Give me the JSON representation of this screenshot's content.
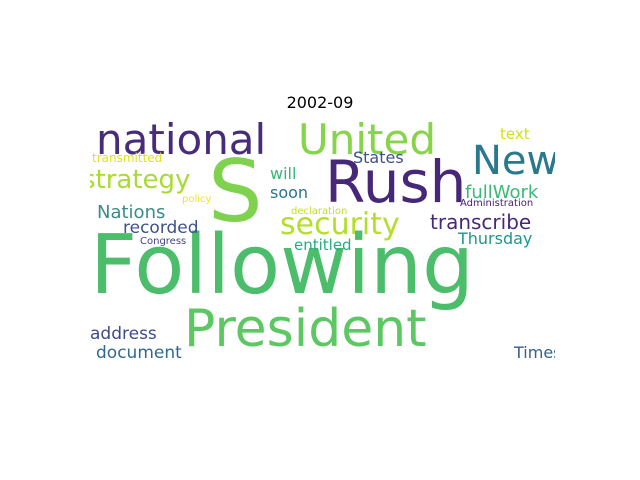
{
  "title": "2002-09",
  "words": [
    {
      "id": "following",
      "text": "Following",
      "color": "#4cbd6a"
    },
    {
      "id": "s",
      "text": "S",
      "color": "#7ed24e"
    },
    {
      "id": "rush",
      "text": "Rush",
      "color": "#472777"
    },
    {
      "id": "president",
      "text": "President",
      "color": "#5dc863"
    },
    {
      "id": "national",
      "text": "national",
      "color": "#472c7a"
    },
    {
      "id": "united",
      "text": "United",
      "color": "#86d549"
    },
    {
      "id": "new",
      "text": "New",
      "color": "#2a788e"
    },
    {
      "id": "security",
      "text": "security",
      "color": "#b5de2b"
    },
    {
      "id": "strategy",
      "text": "strategy",
      "color": "#a8db34"
    },
    {
      "id": "nations",
      "text": "Nations",
      "color": "#3b8a8c"
    },
    {
      "id": "transcribe",
      "text": "transcribe",
      "color": "#482979"
    },
    {
      "id": "full-work",
      "text": "fullWork",
      "color": "#3aba76"
    },
    {
      "id": "states",
      "text": "States",
      "color": "#3b528b"
    },
    {
      "id": "will",
      "text": "will",
      "color": "#35b779"
    },
    {
      "id": "soon",
      "text": "soon",
      "color": "#2c728e"
    },
    {
      "id": "recorded",
      "text": "recorded",
      "color": "#3b528b"
    },
    {
      "id": "entitled",
      "text": "entitled",
      "color": "#27ad81"
    },
    {
      "id": "thursday",
      "text": "Thursday",
      "color": "#1f968b"
    },
    {
      "id": "text",
      "text": "text",
      "color": "#d0e11c"
    },
    {
      "id": "address",
      "text": "address",
      "color": "#3e4a89"
    },
    {
      "id": "document",
      "text": "document",
      "color": "#31688e"
    },
    {
      "id": "times",
      "text": "Times",
      "color": "#355f8d"
    },
    {
      "id": "transmitted",
      "text": "transmitted",
      "color": "#dde318"
    },
    {
      "id": "policy",
      "text": "policy",
      "color": "#f1e51d"
    },
    {
      "id": "declaration",
      "text": "declaration",
      "color": "#c2df23"
    },
    {
      "id": "administration",
      "text": "Administration",
      "color": "#482173"
    },
    {
      "id": "congress",
      "text": "Congress",
      "color": "#414487"
    }
  ]
}
